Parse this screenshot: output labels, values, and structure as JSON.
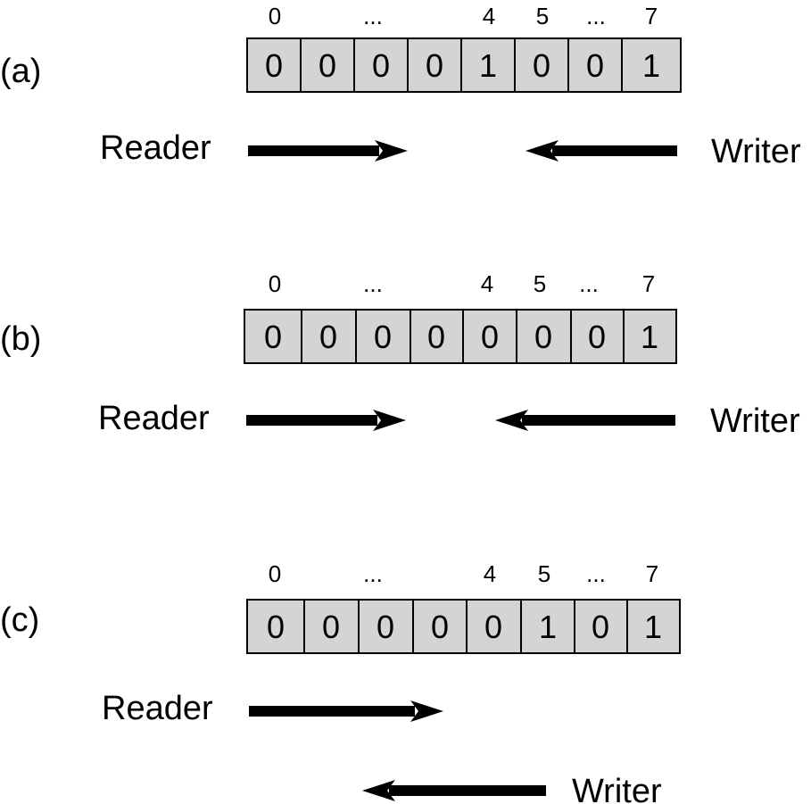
{
  "colors": {
    "cell_fill": "#d4d4d4",
    "stroke": "#000000",
    "background": "#ffffff"
  },
  "panels": [
    {
      "label": "(a)",
      "indices": [
        "0",
        "...",
        "4",
        "5",
        "...",
        "7"
      ],
      "cells": [
        "0",
        "0",
        "0",
        "0",
        "1",
        "0",
        "0",
        "1"
      ],
      "reader_label": "Reader",
      "writer_label": "Writer"
    },
    {
      "label": "(b)",
      "indices": [
        "0",
        "...",
        "4",
        "5",
        "...",
        "7"
      ],
      "cells": [
        "0",
        "0",
        "0",
        "0",
        "0",
        "0",
        "0",
        "1"
      ],
      "reader_label": "Reader",
      "writer_label": "Writer"
    },
    {
      "label": "(c)",
      "indices": [
        "0",
        "...",
        "4",
        "5",
        "...",
        "7"
      ],
      "cells": [
        "0",
        "0",
        "0",
        "0",
        "0",
        "1",
        "0",
        "1"
      ],
      "reader_label": "Reader",
      "writer_label": "Writer"
    }
  ]
}
